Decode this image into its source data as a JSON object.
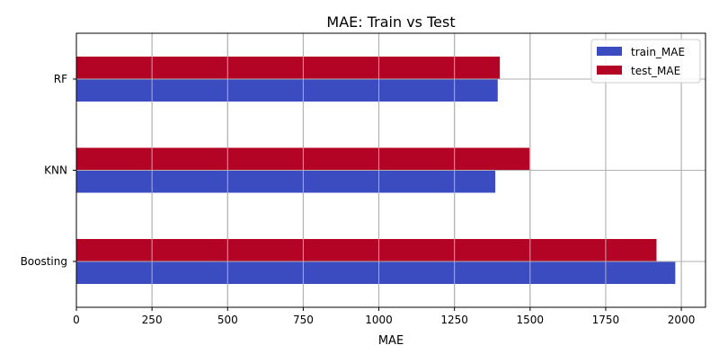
{
  "chart_data": {
    "type": "bar",
    "orientation": "horizontal",
    "title": "MAE: Train vs Test",
    "xlabel": "MAE",
    "ylabel": "",
    "xlim": [
      0,
      2080
    ],
    "xticks": [
      0,
      250,
      500,
      750,
      1000,
      1250,
      1500,
      1750,
      2000
    ],
    "categories": [
      "Boosting",
      "KNN",
      "RF"
    ],
    "series": [
      {
        "name": "train_MAE",
        "color": "#3b4cc0",
        "values": [
          1980,
          1385,
          1393
        ]
      },
      {
        "name": "test_MAE",
        "color": "#b40426",
        "values": [
          1918,
          1498,
          1400
        ]
      }
    ],
    "grid": true,
    "legend_position": "top-right"
  }
}
